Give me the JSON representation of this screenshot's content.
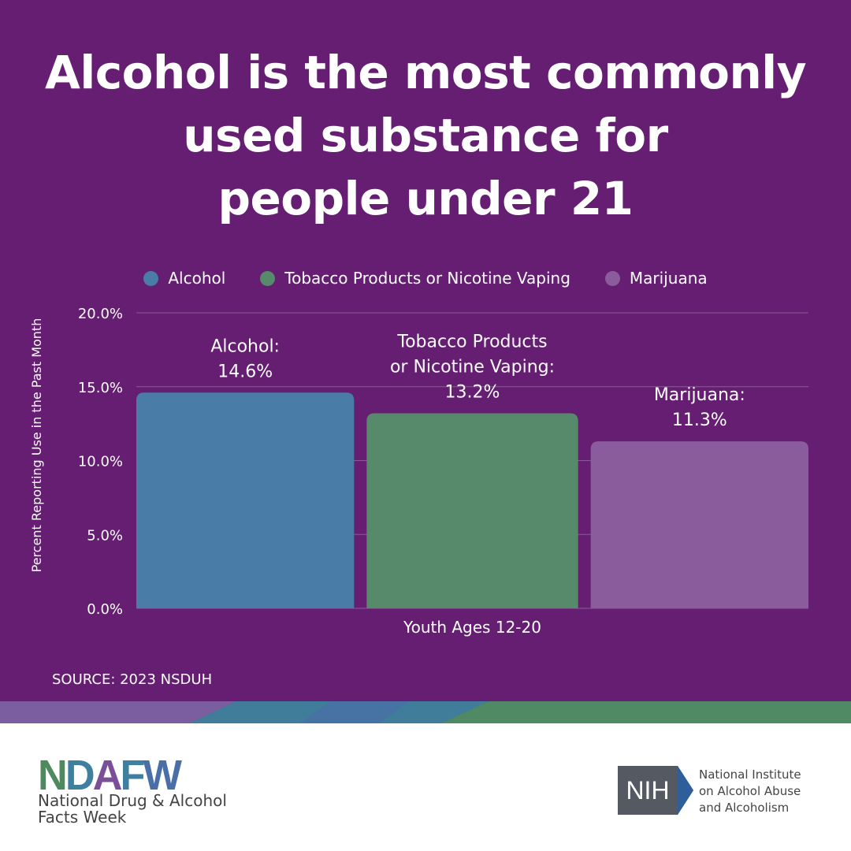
{
  "title_lines": [
    "Alcohol is the most commonly",
    "used substance for",
    "people under 21"
  ],
  "legend": [
    {
      "label": "Alcohol",
      "color": "#4a7ca8"
    },
    {
      "label": "Tobacco Products or Nicotine Vaping",
      "color": "#578a6a"
    },
    {
      "label": "Marijuana",
      "color": "#8b5c9b"
    }
  ],
  "chart_data": {
    "type": "bar",
    "title": "Alcohol is the most commonly used substance for people under 21",
    "xlabel": "Youth Ages 12-20",
    "ylabel": "Percent Reporting Use in the Past Month",
    "ylim": [
      0,
      20
    ],
    "yticks": [
      "0.0%",
      "5.0%",
      "10.0%",
      "15.0%",
      "20.0%"
    ],
    "grid": true,
    "legend_position": "top",
    "categories": [
      "Alcohol",
      "Tobacco Products or Nicotine Vaping",
      "Marijuana"
    ],
    "values": [
      14.6,
      13.2,
      11.3
    ],
    "colors": [
      "#4a7ca8",
      "#578a6a",
      "#8b5c9b"
    ],
    "data_labels": [
      [
        "Alcohol:",
        "14.6%"
      ],
      [
        "Tobacco Products",
        "or Nicotine Vaping:",
        "13.2%"
      ],
      [
        "Marijuana:",
        "11.3%"
      ]
    ]
  },
  "source": "SOURCE: 2023 NSDUH",
  "footer": {
    "ndafw_logo": "NDAFW",
    "ndafw_name_lines": [
      "National Drug & Alcohol",
      "Facts Week"
    ],
    "nih_logo": "NIH",
    "nih_name_lines": [
      "National Institute",
      "on Alcohol Abuse",
      "and Alcoholism"
    ]
  }
}
